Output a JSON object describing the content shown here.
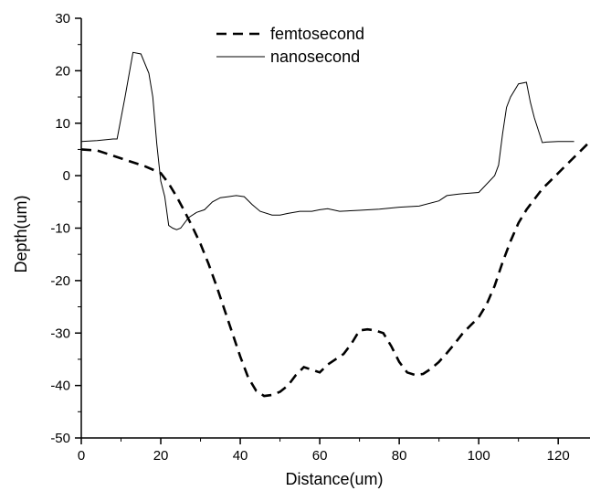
{
  "chart_data": {
    "type": "line",
    "title": "",
    "xlabel": "Distance(um)",
    "ylabel": "Depth(um)",
    "xlim": [
      0,
      128
    ],
    "ylim": [
      -50,
      30
    ],
    "x_ticks": [
      0,
      20,
      40,
      60,
      80,
      100,
      120
    ],
    "y_ticks": [
      30,
      20,
      10,
      0,
      -10,
      -20,
      -30,
      -40,
      -50
    ],
    "x_tick_labels": [
      "0",
      "20",
      "40",
      "60",
      "80",
      "100",
      "120"
    ],
    "y_tick_labels": [
      "30",
      "20",
      "10",
      "0",
      "-10",
      "-20",
      "-30",
      "-40",
      "-50"
    ],
    "grid": false,
    "legend_position": "top-center",
    "series": [
      {
        "name": "femtosecond",
        "style": "dashed",
        "color": "#000000",
        "x": [
          0,
          4,
          8,
          12,
          16,
          20,
          22,
          24,
          26,
          28,
          30,
          32,
          34,
          36,
          38,
          40,
          42,
          44,
          46,
          48,
          50,
          52,
          54,
          56,
          58,
          60,
          62,
          64,
          66,
          68,
          70,
          72,
          74,
          76,
          78,
          80,
          82,
          84,
          86,
          88,
          90,
          92,
          94,
          96,
          98,
          100,
          102,
          104,
          106,
          108,
          110,
          112,
          114,
          116,
          118,
          120,
          122,
          124,
          126,
          128
        ],
        "values": [
          5.0,
          4.8,
          3.8,
          2.8,
          1.8,
          0.5,
          -1.5,
          -4.0,
          -6.8,
          -9.8,
          -13.0,
          -16.8,
          -21.0,
          -25.5,
          -30.0,
          -34.5,
          -38.5,
          -41.0,
          -42.0,
          -41.8,
          -41.2,
          -40.0,
          -38.0,
          -36.5,
          -37.0,
          -37.5,
          -36.0,
          -35.0,
          -34.0,
          -32.0,
          -29.5,
          -29.3,
          -29.5,
          -30.0,
          -32.5,
          -35.5,
          -37.5,
          -38.0,
          -37.8,
          -36.8,
          -35.5,
          -33.8,
          -32.0,
          -30.0,
          -28.5,
          -27.0,
          -24.5,
          -21.0,
          -16.5,
          -12.5,
          -9.0,
          -6.5,
          -4.5,
          -2.5,
          -1.0,
          0.5,
          2.0,
          3.5,
          5.0,
          6.5
        ]
      },
      {
        "name": "nanosecond",
        "style": "solid",
        "color": "#000000",
        "x": [
          0,
          4,
          8,
          9,
          11,
          13,
          15,
          17,
          18,
          19,
          20,
          21,
          22,
          23,
          24,
          25,
          27,
          29,
          31,
          33,
          35,
          37,
          39,
          41,
          43,
          45,
          48,
          50,
          52,
          55,
          58,
          60,
          62,
          65,
          70,
          75,
          80,
          85,
          90,
          92,
          95,
          100,
          104,
          105,
          106,
          107,
          108,
          110,
          112,
          113,
          114,
          116,
          117,
          120,
          124
        ],
        "values": [
          6.5,
          6.7,
          7.0,
          7.0,
          15.0,
          23.5,
          23.2,
          19.5,
          15.0,
          6.0,
          -1.0,
          -4.0,
          -9.5,
          -10.0,
          -10.3,
          -10.0,
          -8.0,
          -7.0,
          -6.5,
          -5.0,
          -4.2,
          -4.0,
          -3.8,
          -4.0,
          -5.5,
          -6.8,
          -7.5,
          -7.5,
          -7.2,
          -6.8,
          -6.8,
          -6.5,
          -6.3,
          -6.8,
          -6.6,
          -6.4,
          -6.0,
          -5.8,
          -4.8,
          -3.8,
          -3.5,
          -3.2,
          0.0,
          2.0,
          8.0,
          13.0,
          15.0,
          17.5,
          17.8,
          14.0,
          11.0,
          6.3,
          6.4,
          6.5,
          6.5
        ]
      }
    ]
  }
}
